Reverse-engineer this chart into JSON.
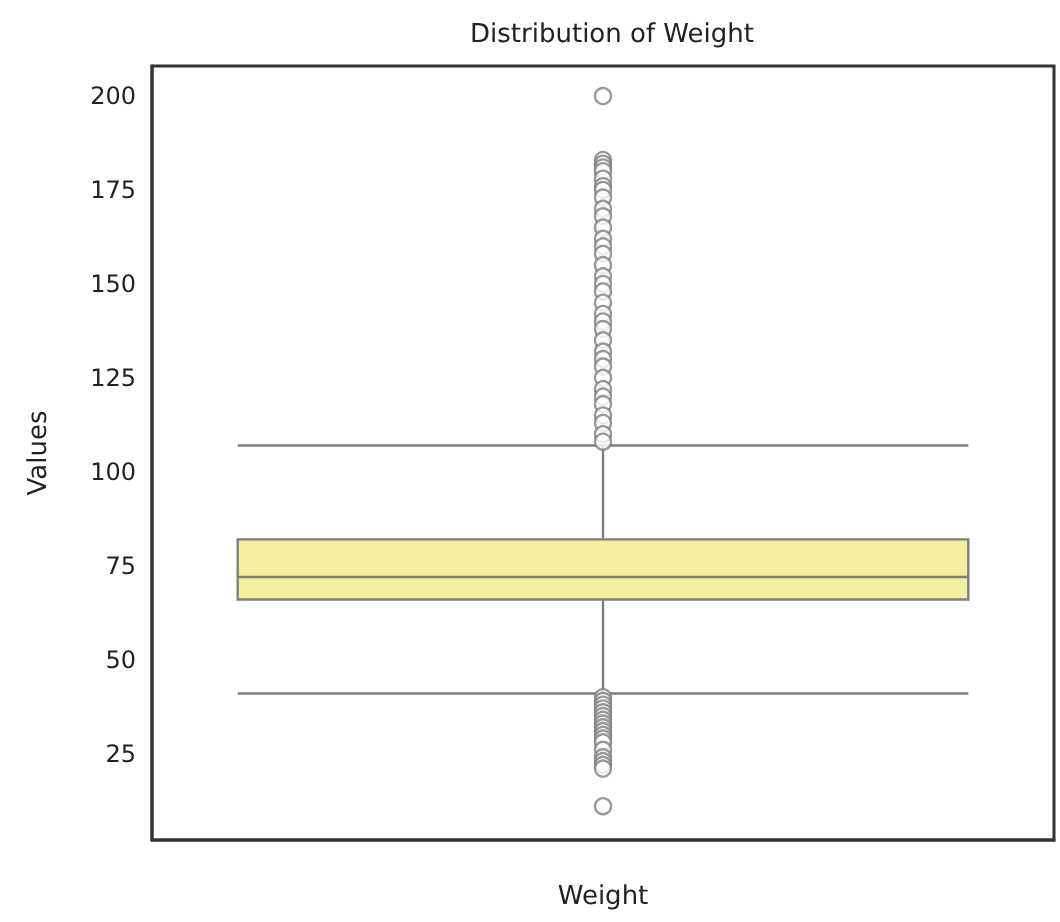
{
  "chart_data": {
    "type": "box",
    "title": "Distribution of Weight",
    "xlabel": "Weight",
    "ylabel": "Values",
    "categories": [
      null
    ],
    "color": "#f2f09e",
    "boxes": [
      {
        "low": 41,
        "q1": 66,
        "median": 72,
        "q3": 82,
        "high": 107,
        "outliers": [
          200,
          183,
          182,
          181,
          180,
          178,
          176,
          175,
          173,
          170,
          168,
          165,
          162,
          160,
          158,
          155,
          152,
          150,
          148,
          145,
          142,
          140,
          138,
          135,
          132,
          130,
          128,
          125,
          122,
          120,
          118,
          115,
          113,
          110,
          108,
          40,
          39,
          38,
          37,
          36,
          35,
          34,
          33,
          32,
          31,
          30,
          29,
          28,
          26,
          24,
          23,
          22,
          21,
          11
        ]
      }
    ],
    "ylim": [
      2,
      208
    ],
    "yticks": [
      25,
      50,
      75,
      100,
      125,
      150,
      175,
      200
    ],
    "grid": false
  }
}
